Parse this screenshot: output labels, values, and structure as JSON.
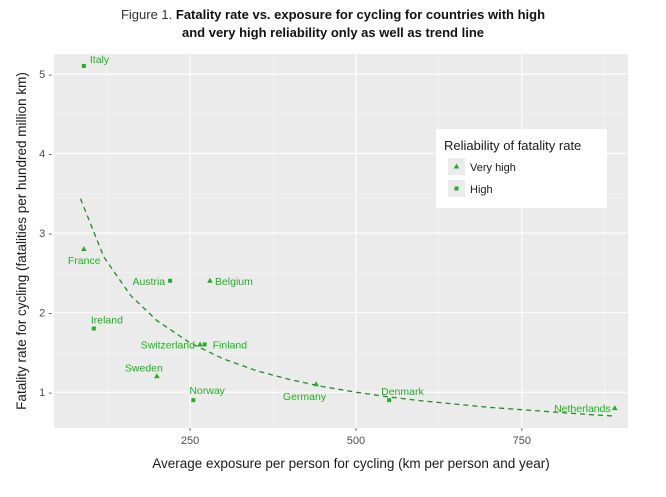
{
  "figure": {
    "caption_prefix": "Figure 1.",
    "caption_line1": "Fatality rate vs. exposure for cycling for countries with high",
    "caption_line2": "and very high reliability only as well as trend line"
  },
  "colors": {
    "panel_background": "#ebebeb",
    "grid_major": "#ffffff",
    "grid_minor": "#f5f5f5",
    "points": "#22b022",
    "trend": "#1e8f1e"
  },
  "chart_data": {
    "type": "scatter",
    "xlabel": "Average exposure per person for cycling (km per person and year)",
    "ylabel": "Fatality rate for cycling (fatalities per hundred million km)",
    "xlim": [
      45,
      910
    ],
    "ylim": [
      0.55,
      5.25
    ],
    "x_ticks": [
      250,
      500,
      750
    ],
    "y_ticks": [
      1,
      2,
      3,
      4,
      5
    ],
    "x_tick_labels": [
      "250",
      "500",
      "750"
    ],
    "y_tick_labels": [
      "1 -",
      "2 -",
      "3 -",
      "4 -",
      "5 -"
    ],
    "grid": true,
    "legend": {
      "title": "Reliability of fatality rate",
      "placement": "right",
      "entries": [
        {
          "label": "Very high",
          "marker": "triangle"
        },
        {
          "label": "High",
          "marker": "square"
        }
      ]
    },
    "points": [
      {
        "label": "Italy",
        "x": 90,
        "y": 5.1,
        "reliability": "High"
      },
      {
        "label": "France",
        "x": 90,
        "y": 2.8,
        "reliability": "Very high"
      },
      {
        "label": "Austria",
        "x": 220,
        "y": 2.4,
        "reliability": "High"
      },
      {
        "label": "Belgium",
        "x": 280,
        "y": 2.4,
        "reliability": "Very high"
      },
      {
        "label": "Ireland",
        "x": 105,
        "y": 1.8,
        "reliability": "High"
      },
      {
        "label": "Switzerland",
        "x": 265,
        "y": 1.6,
        "reliability": "Very high"
      },
      {
        "label": "Finland",
        "x": 272,
        "y": 1.6,
        "reliability": "High"
      },
      {
        "label": "Sweden",
        "x": 200,
        "y": 1.2,
        "reliability": "Very high"
      },
      {
        "label": "Norway",
        "x": 255,
        "y": 0.9,
        "reliability": "High"
      },
      {
        "label": "Germany",
        "x": 440,
        "y": 1.1,
        "reliability": "Very high"
      },
      {
        "label": "Denmark",
        "x": 550,
        "y": 0.9,
        "reliability": "High"
      },
      {
        "label": "Netherlands",
        "x": 890,
        "y": 0.8,
        "reliability": "Very high"
      }
    ],
    "trend_line": {
      "style": "dashed",
      "x": [
        85,
        120,
        160,
        200,
        250,
        300,
        350,
        400,
        450,
        500,
        550,
        600,
        650,
        700,
        750,
        800,
        850,
        890
      ],
      "y": [
        3.43,
        2.7,
        2.22,
        1.9,
        1.62,
        1.42,
        1.27,
        1.16,
        1.07,
        1.0,
        0.94,
        0.89,
        0.85,
        0.81,
        0.78,
        0.75,
        0.72,
        0.7
      ]
    }
  }
}
